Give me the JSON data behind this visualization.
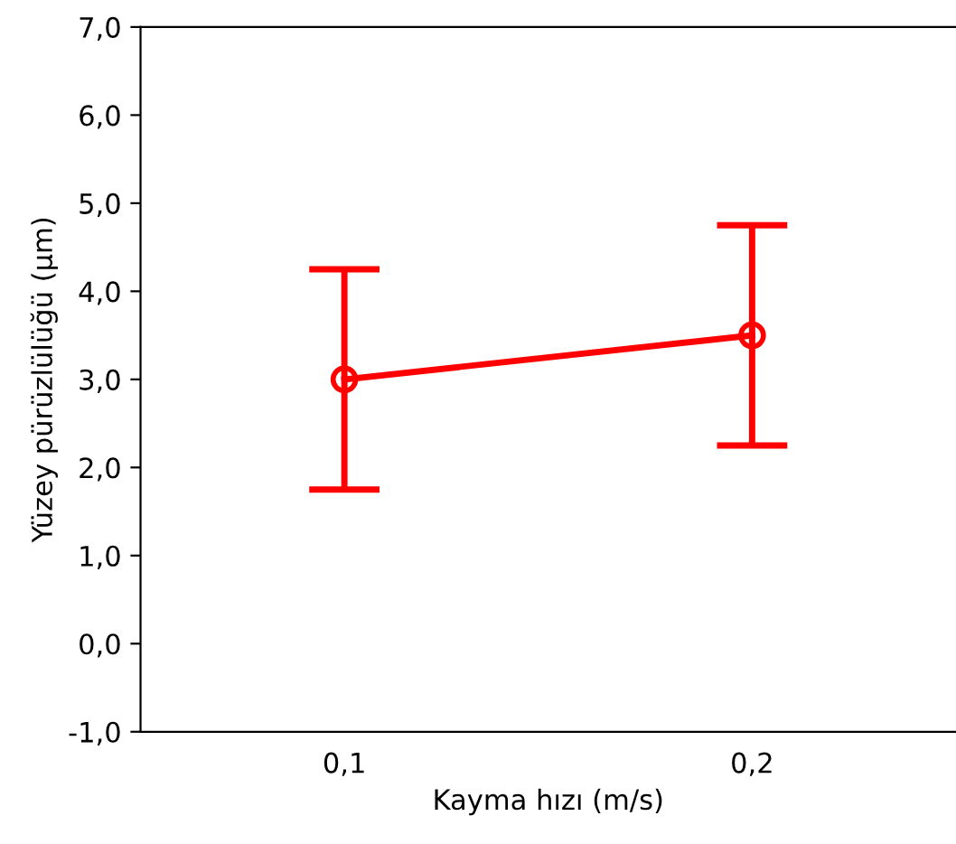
{
  "chart_data": {
    "type": "line",
    "xlabel": "Kayma hızı (m/s)",
    "ylabel": "Yüzey pürüzlülüğü (µm)",
    "categories": [
      "0,1",
      "0,2"
    ],
    "series": [
      {
        "color": "#ff0000",
        "values": [
          3.0,
          3.5
        ],
        "errors": [
          1.25,
          1.25
        ]
      }
    ],
    "ylim": [
      -1.0,
      7.0
    ],
    "yticks": [
      {
        "value": -1,
        "label": "-1,0"
      },
      {
        "value": 0,
        "label": "0,0"
      },
      {
        "value": 1,
        "label": "1,0"
      },
      {
        "value": 2,
        "label": "2,0"
      },
      {
        "value": 3,
        "label": "3,0"
      },
      {
        "value": 4,
        "label": "4,0"
      },
      {
        "value": 5,
        "label": "5,0"
      },
      {
        "value": 6,
        "label": "6,0"
      },
      {
        "value": 7,
        "label": "7,0"
      }
    ],
    "marker": "circle",
    "line_style": "solid",
    "grid": false,
    "legend": false
  }
}
